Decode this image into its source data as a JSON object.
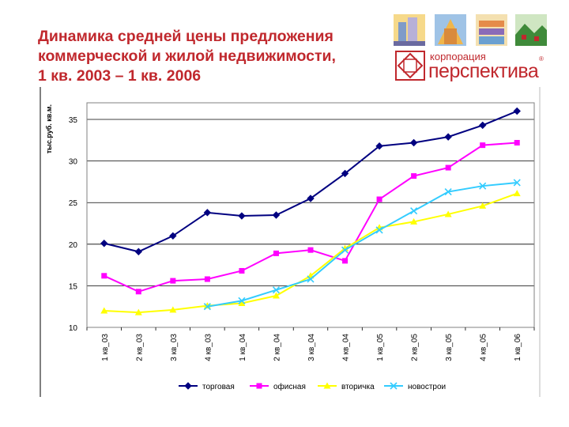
{
  "header": {
    "title_line1": "Динамика средней цены предложения",
    "title_line2": "коммерческой и жилой недвижимости,",
    "title_line3": "1 кв. 2003 – 1 кв. 2006"
  },
  "logo": {
    "line1": "корпорация",
    "line2": "перспектива",
    "mark": "®",
    "brand_color": "#c0282d"
  },
  "chart_data": {
    "type": "line",
    "ylabel": "тыс.руб. кв.м.",
    "ylim": [
      10,
      37
    ],
    "yticks": [
      10,
      15,
      20,
      25,
      30,
      35
    ],
    "grid": "horizontal",
    "legend_position": "bottom",
    "categories": [
      "1 кв_03",
      "2 кв_03",
      "3 кв_03",
      "4 кв_03",
      "1 кв_04",
      "2 кв_04",
      "3 кв_04",
      "4 кв_04",
      "1 кв_05",
      "2 кв_05",
      "3 кв_05",
      "4 кв_05",
      "1 кв_06"
    ],
    "series": [
      {
        "name": "торговая",
        "color": "#000080",
        "marker": "diamond",
        "values": [
          20.1,
          19.1,
          21.0,
          23.8,
          23.4,
          23.5,
          25.5,
          28.5,
          31.8,
          32.2,
          32.9,
          34.3,
          36.0
        ]
      },
      {
        "name": "офисная",
        "color": "#ff00ff",
        "marker": "square",
        "values": [
          16.2,
          14.3,
          15.6,
          15.8,
          16.8,
          18.9,
          19.3,
          18.0,
          25.4,
          28.2,
          29.2,
          31.9,
          32.2
        ]
      },
      {
        "name": "вторичка",
        "color": "#ffff00",
        "marker": "triangle",
        "values": [
          12.0,
          11.8,
          12.1,
          12.6,
          12.9,
          13.8,
          16.2,
          19.5,
          22.0,
          22.7,
          23.6,
          24.6,
          26.1
        ]
      },
      {
        "name": "новострои",
        "color": "#33ccff",
        "marker": "x",
        "values": [
          null,
          null,
          null,
          12.5,
          13.2,
          14.5,
          15.8,
          19.3,
          21.7,
          24.0,
          26.3,
          27.0,
          27.4
        ]
      }
    ]
  }
}
